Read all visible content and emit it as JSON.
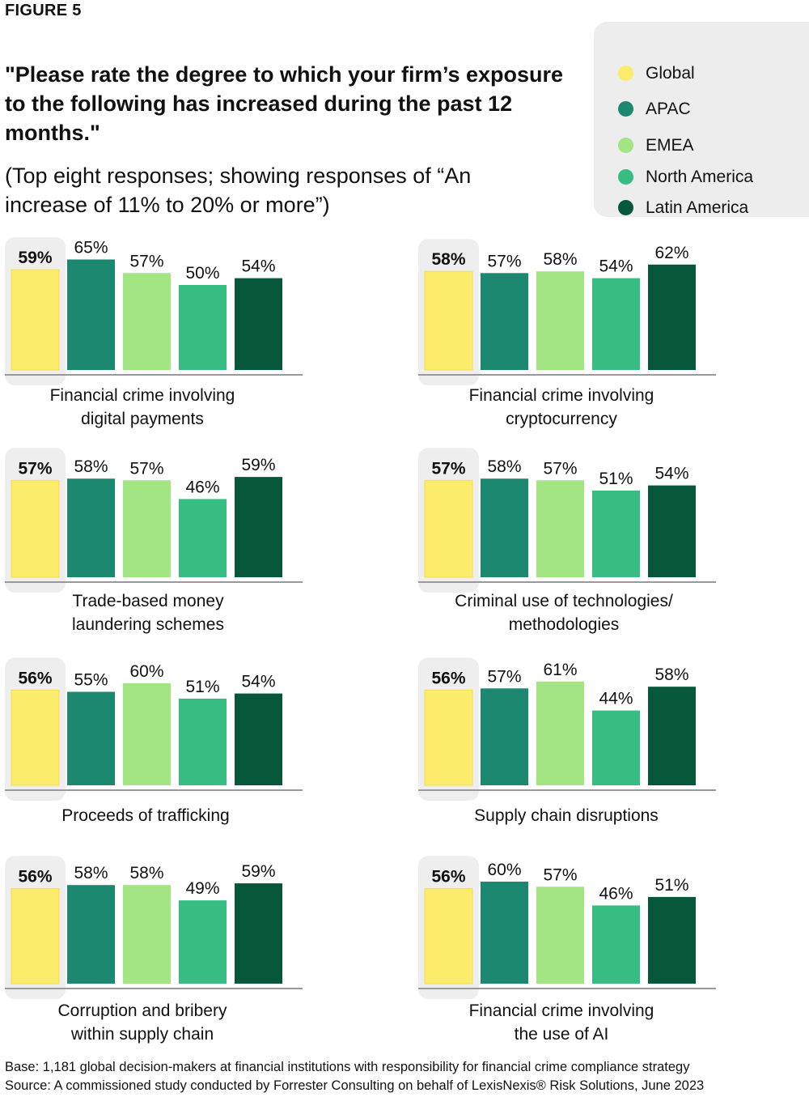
{
  "figure_label": "FIGURE 5",
  "title": "\"Please rate the degree to which your firm’s exposure to the following has increased during the past 12 months.\"",
  "subtitle": "(Top eight responses; showing responses of “An increase of 11% to 20% or more”)",
  "colors": {
    "Global": "#fcec6b",
    "APAC": "#1d8870",
    "EMEA": "#a3e483",
    "North America": "#37bd82",
    "Latin America": "#07573a",
    "axis": "#999999",
    "highlight": "#eeeeee"
  },
  "legend": [
    "Global",
    "APAC",
    "EMEA",
    "North America",
    "Latin America"
  ],
  "chart_data": [
    {
      "type": "bar",
      "title": "Financial crime involving\ndigital payments",
      "categories": [
        "Global",
        "APAC",
        "EMEA",
        "North America",
        "Latin America"
      ],
      "values": [
        59,
        65,
        57,
        50,
        54
      ],
      "value_labels": [
        "59%",
        "65%",
        "57%",
        "50%",
        "54%"
      ]
    },
    {
      "type": "bar",
      "title": "Financial crime involving\ncryptocurrency",
      "categories": [
        "Global",
        "APAC",
        "EMEA",
        "North America",
        "Latin America"
      ],
      "values": [
        58,
        57,
        58,
        54,
        62
      ],
      "value_labels": [
        "58%",
        "57%",
        "58%",
        "54%",
        "62%"
      ]
    },
    {
      "type": "bar",
      "title": "Trade-based money\nlaundering schemes",
      "categories": [
        "Global",
        "APAC",
        "EMEA",
        "North America",
        "Latin America"
      ],
      "values": [
        57,
        58,
        57,
        46,
        59
      ],
      "value_labels": [
        "57%",
        "58%",
        "57%",
        "46%",
        "59%"
      ]
    },
    {
      "type": "bar",
      "title": "Criminal use of technologies/\nmethodologies",
      "categories": [
        "Global",
        "APAC",
        "EMEA",
        "North America",
        "Latin America"
      ],
      "values": [
        57,
        58,
        57,
        51,
        54
      ],
      "value_labels": [
        "57%",
        "58%",
        "57%",
        "51%",
        "54%"
      ]
    },
    {
      "type": "bar",
      "title": "Proceeds of trafficking",
      "categories": [
        "Global",
        "APAC",
        "EMEA",
        "North America",
        "Latin America"
      ],
      "values": [
        56,
        55,
        60,
        51,
        54
      ],
      "value_labels": [
        "56%",
        "55%",
        "60%",
        "51%",
        "54%"
      ]
    },
    {
      "type": "bar",
      "title": "Supply chain disruptions",
      "categories": [
        "Global",
        "APAC",
        "EMEA",
        "North America",
        "Latin America"
      ],
      "values": [
        56,
        57,
        61,
        44,
        58
      ],
      "value_labels": [
        "56%",
        "57%",
        "61%",
        "44%",
        "58%"
      ]
    },
    {
      "type": "bar",
      "title": "Corruption and bribery\nwithin supply chain",
      "categories": [
        "Global",
        "APAC",
        "EMEA",
        "North America",
        "Latin America"
      ],
      "values": [
        56,
        58,
        58,
        49,
        59
      ],
      "value_labels": [
        "56%",
        "58%",
        "58%",
        "49%",
        "59%"
      ]
    },
    {
      "type": "bar",
      "title": "Financial crime involving\nthe use of AI",
      "categories": [
        "Global",
        "APAC",
        "EMEA",
        "North America",
        "Latin America"
      ],
      "values": [
        56,
        60,
        57,
        46,
        51
      ],
      "value_labels": [
        "56%",
        "60%",
        "57%",
        "46%",
        "51%"
      ]
    }
  ],
  "footer": {
    "base": "Base: 1,181 global decision-makers at financial institutions with responsibility for financial crime compliance strategy",
    "source": "Source: A commissioned study conducted by Forrester Consulting on behalf of LexisNexis® Risk Solutions, June 2023"
  }
}
